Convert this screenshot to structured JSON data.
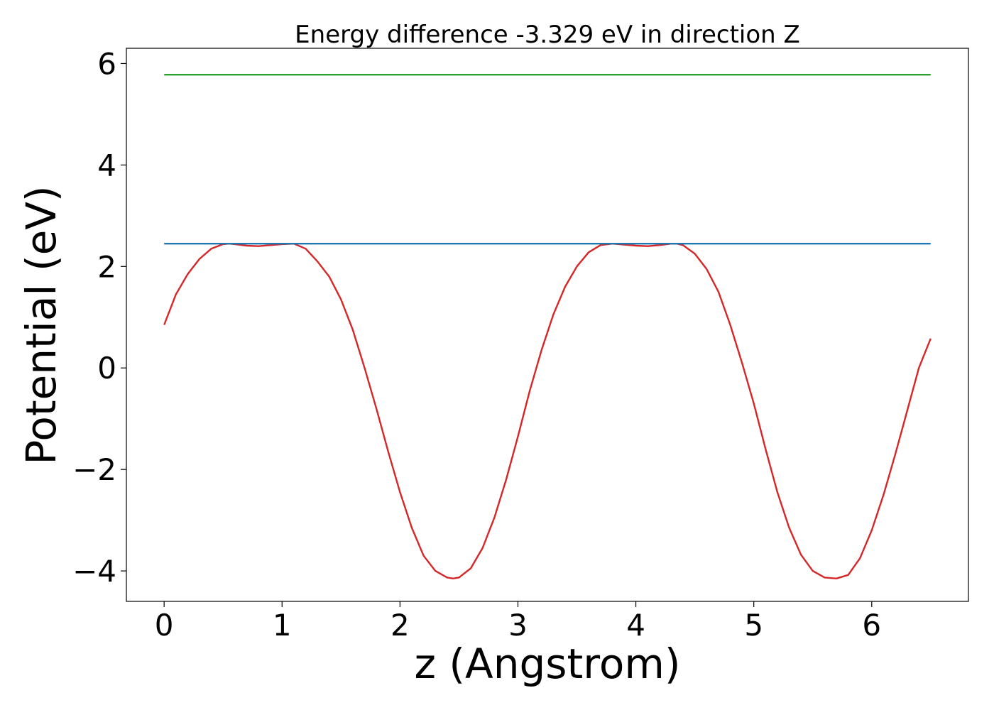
{
  "chart_data": {
    "type": "line",
    "title": "Energy difference -3.329 eV in direction Z",
    "xlabel": "z (Angstrom)",
    "ylabel": "Potential (eV)",
    "xlim": [
      -0.32,
      6.82
    ],
    "ylim": [
      -4.6,
      6.3
    ],
    "xticks": [
      0,
      1,
      2,
      3,
      4,
      5,
      6
    ],
    "xtick_labels": [
      "0",
      "1",
      "2",
      "3",
      "4",
      "5",
      "6"
    ],
    "yticks": [
      -4,
      -2,
      0,
      2,
      4,
      6
    ],
    "ytick_labels": [
      "−4",
      "−2",
      "0",
      "2",
      "4",
      "6"
    ],
    "grid": false,
    "series": [
      {
        "color": "#d62728",
        "x": [
          0,
          0.1,
          0.2,
          0.3,
          0.4,
          0.5,
          0.55,
          0.6,
          0.7,
          0.8,
          0.9,
          1.0,
          1.1,
          1.2,
          1.3,
          1.4,
          1.5,
          1.6,
          1.7,
          1.8,
          1.9,
          2.0,
          2.1,
          2.2,
          2.3,
          2.4,
          2.45,
          2.5,
          2.6,
          2.7,
          2.8,
          2.9,
          3.0,
          3.1,
          3.2,
          3.3,
          3.4,
          3.5,
          3.6,
          3.7,
          3.8,
          3.9,
          4.0,
          4.1,
          4.2,
          4.3,
          4.35,
          4.4,
          4.5,
          4.6,
          4.7,
          4.8,
          4.9,
          5.0,
          5.1,
          5.2,
          5.3,
          5.4,
          5.5,
          5.6,
          5.7,
          5.8,
          5.9,
          6.0,
          6.1,
          6.2,
          6.3,
          6.4,
          6.5
        ],
        "y": [
          0.85,
          1.45,
          1.85,
          2.15,
          2.35,
          2.44,
          2.45,
          2.44,
          2.41,
          2.4,
          2.42,
          2.44,
          2.45,
          2.35,
          2.1,
          1.8,
          1.35,
          0.75,
          0.0,
          -0.8,
          -1.65,
          -2.45,
          -3.15,
          -3.7,
          -4.0,
          -4.13,
          -4.15,
          -4.13,
          -3.95,
          -3.55,
          -2.95,
          -2.2,
          -1.35,
          -0.45,
          0.35,
          1.05,
          1.6,
          2.0,
          2.28,
          2.42,
          2.45,
          2.43,
          2.41,
          2.4,
          2.42,
          2.45,
          2.45,
          2.42,
          2.25,
          1.95,
          1.5,
          0.85,
          0.1,
          -0.7,
          -1.6,
          -2.45,
          -3.15,
          -3.68,
          -4.0,
          -4.13,
          -4.15,
          -4.08,
          -3.75,
          -3.2,
          -2.5,
          -1.7,
          -0.85,
          0.0,
          0.58
        ]
      },
      {
        "color": "#1f77b4",
        "x": [
          0,
          6.5
        ],
        "y": [
          2.45,
          2.45
        ]
      },
      {
        "color": "#2ca02c",
        "x": [
          0,
          6.5
        ],
        "y": [
          5.78,
          5.78
        ]
      }
    ]
  }
}
